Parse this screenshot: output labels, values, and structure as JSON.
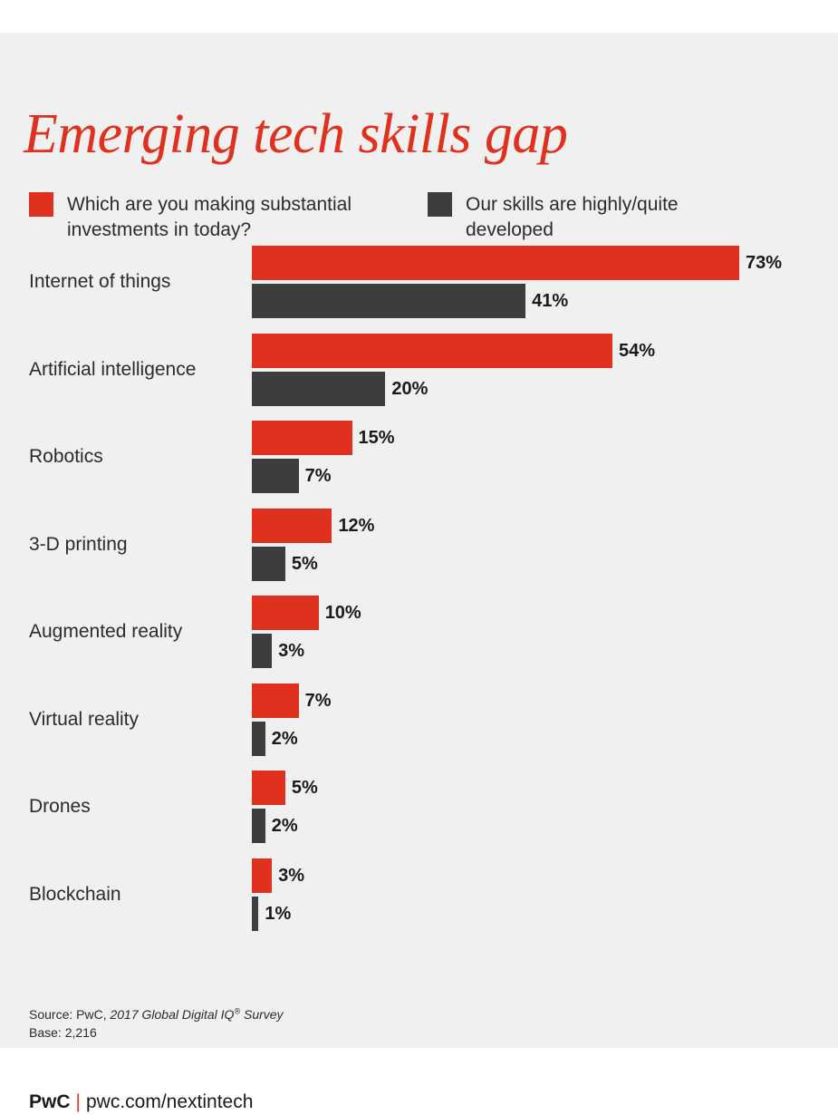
{
  "chart_data": {
    "type": "bar",
    "orientation": "horizontal",
    "title": "Emerging tech skills gap",
    "categories": [
      "Internet of things",
      "Artificial intelligence",
      "Robotics",
      "3-D printing",
      "Augmented reality",
      "Virtual reality",
      "Drones",
      "Blockchain"
    ],
    "series": [
      {
        "name": "Which are you making substantial investments in today?",
        "color": "#e0301e",
        "values": [
          73,
          54,
          15,
          12,
          10,
          7,
          5,
          3
        ],
        "labels": [
          "73%",
          "54%",
          "15%",
          "12%",
          "10%",
          "7%",
          "5%",
          "3%"
        ]
      },
      {
        "name": "Our skills are highly/quite developed",
        "color": "#3d3d3d",
        "values": [
          41,
          20,
          7,
          5,
          3,
          2,
          2,
          1
        ],
        "labels": [
          "41%",
          "20%",
          "7%",
          "5%",
          "3%",
          "2%",
          "2%",
          "1%"
        ]
      }
    ],
    "unit": "%",
    "xlim": [
      0,
      73
    ],
    "grid": false,
    "legend_position": "top"
  },
  "source": {
    "prefix": "Source: PwC,",
    "survey": "2017 Global Digital IQ",
    "reg": "®",
    "survey_suffix": "Survey",
    "base": "Base: 2,216"
  },
  "footer": {
    "brand": "PwC",
    "separator": "|",
    "url": "pwc.com/nextintech"
  }
}
